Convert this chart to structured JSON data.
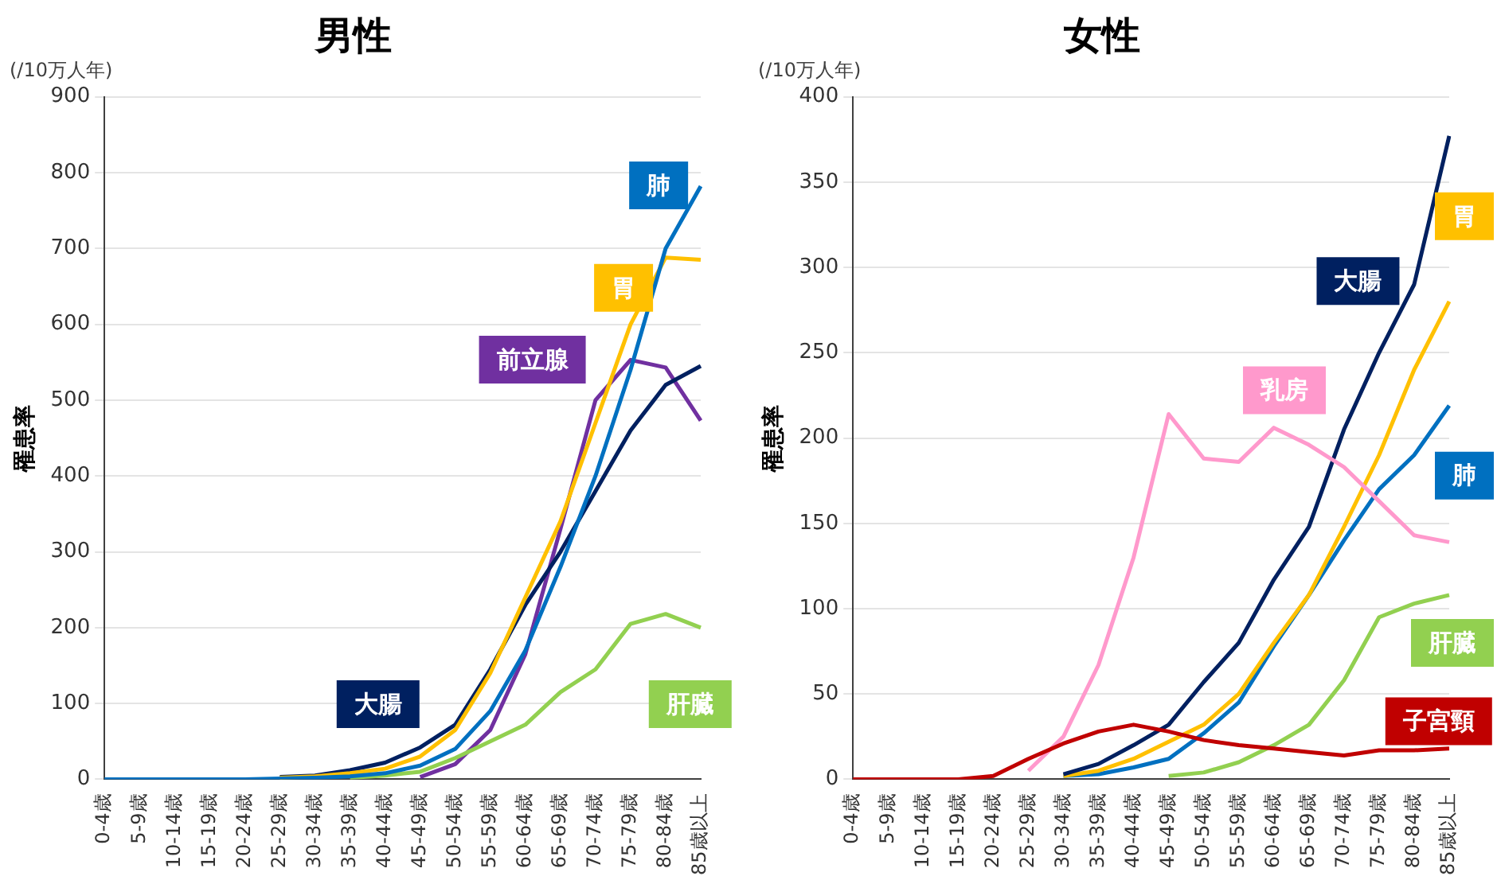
{
  "chart_data": [
    {
      "type": "line",
      "title": "男性",
      "ylabel": "罹患率",
      "annotations": [
        "(/10万人年)"
      ],
      "categories": [
        "0-4歳",
        "5-9歳",
        "10-14歳",
        "15-19歳",
        "20-24歳",
        "25-29歳",
        "30-34歳",
        "35-39歳",
        "40-44歳",
        "45-49歳",
        "50-54歳",
        "55-59歳",
        "60-64歳",
        "65-69歳",
        "70-74歳",
        "75-79歳",
        "80-84歳",
        "85歳以上"
      ],
      "series": [
        {
          "name": "肺",
          "color": "#0070c0",
          "values": [
            0,
            0,
            0,
            0,
            0,
            1,
            2,
            4,
            8,
            18,
            40,
            90,
            170,
            280,
            400,
            540,
            700,
            782
          ]
        },
        {
          "name": "胃",
          "color": "#ffc000",
          "values": [
            null,
            null,
            null,
            null,
            null,
            2,
            4,
            8,
            14,
            30,
            65,
            140,
            240,
            340,
            470,
            600,
            688,
            685
          ]
        },
        {
          "name": "前立腺",
          "color": "#7030a0",
          "values": [
            null,
            null,
            null,
            null,
            null,
            null,
            null,
            null,
            null,
            3,
            20,
            65,
            165,
            330,
            500,
            553,
            543,
            473
          ]
        },
        {
          "name": "大腸",
          "color": "#002060",
          "values": [
            null,
            null,
            null,
            null,
            null,
            3,
            5,
            12,
            22,
            42,
            72,
            145,
            230,
            300,
            380,
            460,
            520,
            545
          ]
        },
        {
          "name": "肝臓",
          "color": "#92d050",
          "values": [
            null,
            null,
            null,
            null,
            null,
            null,
            null,
            2,
            5,
            10,
            28,
            50,
            72,
            115,
            145,
            205,
            218,
            200
          ]
        }
      ],
      "ylim": [
        0,
        900
      ],
      "yticks": [
        0,
        100,
        200,
        300,
        400,
        500,
        600,
        700,
        800,
        900
      ],
      "grid": "y",
      "legend": false,
      "marker": "none",
      "line_style": "solid"
    },
    {
      "type": "line",
      "title": "女性",
      "ylabel": "罹患率",
      "annotations": [
        "(/10万人年)"
      ],
      "categories": [
        "0-4歳",
        "5-9歳",
        "10-14歳",
        "15-19歳",
        "20-24歳",
        "25-29歳",
        "30-34歳",
        "35-39歳",
        "40-44歳",
        "45-49歳",
        "50-54歳",
        "55-59歳",
        "60-64歳",
        "65-69歳",
        "70-74歳",
        "75-79歳",
        "80-84歳",
        "85歳以上"
      ],
      "series": [
        {
          "name": "大腸",
          "color": "#002060",
          "values": [
            null,
            null,
            null,
            null,
            null,
            null,
            3,
            9,
            20,
            32,
            57,
            80,
            117,
            148,
            205,
            250,
            290,
            377
          ]
        },
        {
          "name": "胃",
          "color": "#ffc000",
          "values": [
            null,
            null,
            null,
            null,
            null,
            null,
            2,
            5,
            12,
            22,
            32,
            50,
            80,
            108,
            148,
            190,
            240,
            280
          ]
        },
        {
          "name": "乳房",
          "color": "#ff99cc",
          "values": [
            null,
            null,
            null,
            null,
            null,
            5,
            25,
            67,
            130,
            214,
            188,
            186,
            206,
            196,
            183,
            163,
            143,
            139
          ]
        },
        {
          "name": "肺",
          "color": "#0070c0",
          "values": [
            null,
            null,
            null,
            null,
            null,
            null,
            2,
            3,
            7,
            12,
            27,
            45,
            78,
            108,
            140,
            170,
            190,
            219
          ]
        },
        {
          "name": "肝臓",
          "color": "#92d050",
          "values": [
            null,
            null,
            null,
            null,
            null,
            null,
            null,
            null,
            null,
            2,
            4,
            10,
            20,
            32,
            58,
            95,
            103,
            108
          ]
        },
        {
          "name": "子宮頸",
          "color": "#c00000",
          "values": [
            0,
            0,
            0,
            0,
            2,
            12,
            21,
            28,
            32,
            28,
            23,
            20,
            18,
            16,
            14,
            17,
            17,
            18
          ]
        }
      ],
      "ylim": [
        0,
        400
      ],
      "yticks": [
        0,
        50,
        100,
        150,
        200,
        250,
        300,
        350,
        400
      ],
      "grid": "y",
      "legend": false,
      "marker": "none",
      "line_style": "solid"
    }
  ]
}
